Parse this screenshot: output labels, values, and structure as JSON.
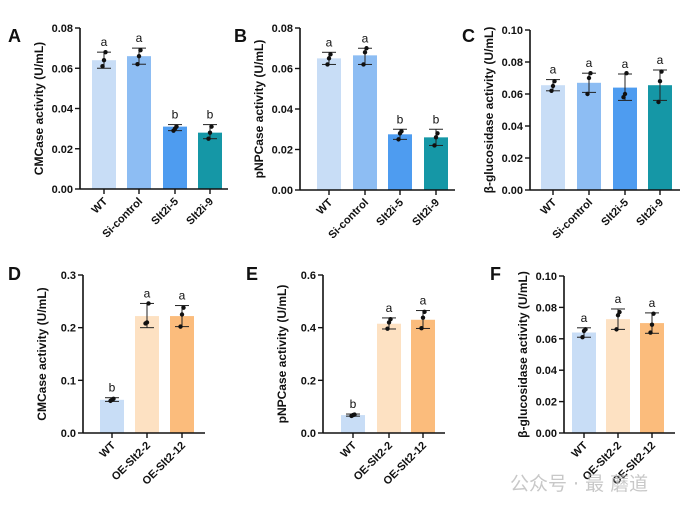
{
  "watermark": "公众号 · 最 蘑道",
  "chart_data": [
    {
      "panel": "A",
      "type": "bar",
      "ylabel": "CMCase activity (U/mL)",
      "ylim": [
        0,
        0.08
      ],
      "yticks": [
        "0.00",
        "0.02",
        "0.04",
        "0.06",
        "0.08"
      ],
      "categories": [
        "WT",
        "Si-control",
        "Slt2i-5",
        "Slt2i-9"
      ],
      "values": [
        0.064,
        0.066,
        0.031,
        0.028
      ],
      "error": [
        [
          0.06,
          0.068
        ],
        [
          0.062,
          0.07
        ],
        [
          0.029,
          0.032
        ],
        [
          0.025,
          0.032
        ]
      ],
      "points": [
        [
          0.061,
          0.064,
          0.068
        ],
        [
          0.062,
          0.066,
          0.069
        ],
        [
          0.029,
          0.03,
          0.031
        ],
        [
          0.025,
          0.028,
          0.031
        ]
      ],
      "letters": [
        "a",
        "a",
        "b",
        "b"
      ],
      "colors": [
        "#c8ddf6",
        "#8dbdf3",
        "#4e9cf0",
        "#1597a6"
      ]
    },
    {
      "panel": "B",
      "type": "bar",
      "ylabel": "pNPCase activity (U/mL)",
      "ylim": [
        0,
        0.08
      ],
      "yticks": [
        "0.00",
        "0.02",
        "0.04",
        "0.06",
        "0.08"
      ],
      "categories": [
        "WT",
        "Si-control",
        "Slt2i-5",
        "Slt2i-9"
      ],
      "values": [
        0.065,
        0.0665,
        0.0275,
        0.026
      ],
      "error": [
        [
          0.062,
          0.068
        ],
        [
          0.062,
          0.07
        ],
        [
          0.025,
          0.03
        ],
        [
          0.022,
          0.03
        ]
      ],
      "points": [
        [
          0.062,
          0.065,
          0.067
        ],
        [
          0.062,
          0.068,
          0.07
        ],
        [
          0.025,
          0.028,
          0.029
        ],
        [
          0.022,
          0.026,
          0.028
        ]
      ],
      "letters": [
        "a",
        "a",
        "b",
        "b"
      ],
      "colors": [
        "#c8ddf6",
        "#8dbdf3",
        "#4e9cf0",
        "#1597a6"
      ]
    },
    {
      "panel": "C",
      "type": "bar",
      "ylabel": "β-glucosidase activity (U/mL)",
      "ylim": [
        0,
        0.1
      ],
      "yticks": [
        "0.00",
        "0.02",
        "0.04",
        "0.06",
        "0.08",
        "0.10"
      ],
      "categories": [
        "WT",
        "Si-control",
        "Slt2i-5",
        "Slt2i-9"
      ],
      "values": [
        0.0655,
        0.067,
        0.064,
        0.0655
      ],
      "error": [
        [
          0.062,
          0.069
        ],
        [
          0.061,
          0.073
        ],
        [
          0.056,
          0.0725
        ],
        [
          0.056,
          0.075
        ]
      ],
      "points": [
        [
          0.062,
          0.065,
          0.068
        ],
        [
          0.06,
          0.07,
          0.073
        ],
        [
          0.058,
          0.06,
          0.073
        ],
        [
          0.055,
          0.068,
          0.074
        ]
      ],
      "letters": [
        "a",
        "a",
        "a",
        "a"
      ],
      "colors": [
        "#c8ddf6",
        "#8dbdf3",
        "#4e9cf0",
        "#1597a6"
      ]
    },
    {
      "panel": "D",
      "type": "bar",
      "ylabel": "CMCase activity (U/mL)",
      "ylim": [
        0,
        0.3
      ],
      "yticks": [
        "0.0",
        "0.1",
        "0.2",
        "0.3"
      ],
      "categories": [
        "WT",
        "OE-Slt2-2",
        "OE-Slt2-12"
      ],
      "values": [
        0.063,
        0.222,
        0.222
      ],
      "error": [
        [
          0.06,
          0.067
        ],
        [
          0.2,
          0.246
        ],
        [
          0.202,
          0.242
        ]
      ],
      "points": [
        [
          0.061,
          0.063,
          0.065
        ],
        [
          0.208,
          0.21,
          0.246
        ],
        [
          0.202,
          0.225,
          0.238
        ]
      ],
      "letters": [
        "b",
        "a",
        "a"
      ],
      "colors": [
        "#c8ddf6",
        "#fde1c2",
        "#fbbc7c"
      ]
    },
    {
      "panel": "E",
      "type": "bar",
      "ylabel": "pNPCase activity (U/mL)",
      "ylim": [
        0,
        0.6
      ],
      "yticks": [
        "0.0",
        "0.2",
        "0.4",
        "0.6"
      ],
      "categories": [
        "WT",
        "OE-Slt2-2",
        "OE-Slt2-12"
      ],
      "values": [
        0.068,
        0.415,
        0.43
      ],
      "error": [
        [
          0.064,
          0.072
        ],
        [
          0.395,
          0.437
        ],
        [
          0.397,
          0.465
        ]
      ],
      "points": [
        [
          0.065,
          0.068,
          0.07
        ],
        [
          0.396,
          0.42,
          0.432
        ],
        [
          0.398,
          0.438,
          0.46
        ]
      ],
      "letters": [
        "b",
        "a",
        "a"
      ],
      "colors": [
        "#c8ddf6",
        "#fde1c2",
        "#fbbc7c"
      ]
    },
    {
      "panel": "F",
      "type": "bar",
      "ylabel": "β-glucosidase activity (U/mL)",
      "ylim": [
        0,
        0.1
      ],
      "yticks": [
        "0.00",
        "0.02",
        "0.04",
        "0.06",
        "0.08",
        "0.10"
      ],
      "categories": [
        "WT",
        "OE-Slt2-2",
        "OE-Slt2-12"
      ],
      "values": [
        0.064,
        0.0725,
        0.07
      ],
      "error": [
        [
          0.061,
          0.067
        ],
        [
          0.066,
          0.079
        ],
        [
          0.0635,
          0.0765
        ]
      ],
      "points": [
        [
          0.061,
          0.065,
          0.066
        ],
        [
          0.066,
          0.075,
          0.077
        ],
        [
          0.064,
          0.069,
          0.076
        ]
      ],
      "letters": [
        "a",
        "a",
        "a"
      ],
      "colors": [
        "#c8ddf6",
        "#fde1c2",
        "#fbbc7c"
      ]
    }
  ]
}
